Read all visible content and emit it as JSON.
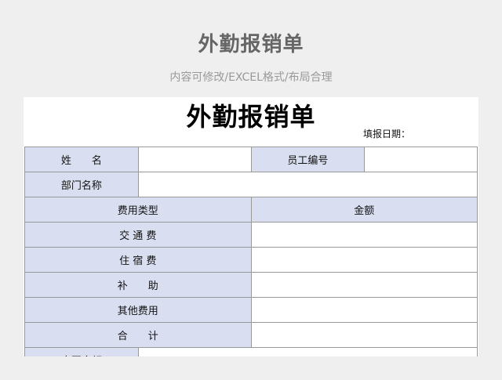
{
  "header": {
    "title": "外勤报销单",
    "subtitle": "内容可修改/EXCEL格式/布局合理"
  },
  "sheet": {
    "title": "外勤报销单",
    "date_label": "填报日期：",
    "name_label": "姓　　名",
    "employee_id_label": "员工编号",
    "department_label": "部门名称",
    "expense_type_label": "费用类型",
    "amount_label": "金额",
    "items": [
      "交 通 费",
      "住 宿 费",
      "补　　助",
      "其他费用",
      "合　　计"
    ],
    "last_row_label": "大写金额"
  },
  "colors": {
    "label_bg": "#d9dff0",
    "page_bg": "#efefef"
  }
}
